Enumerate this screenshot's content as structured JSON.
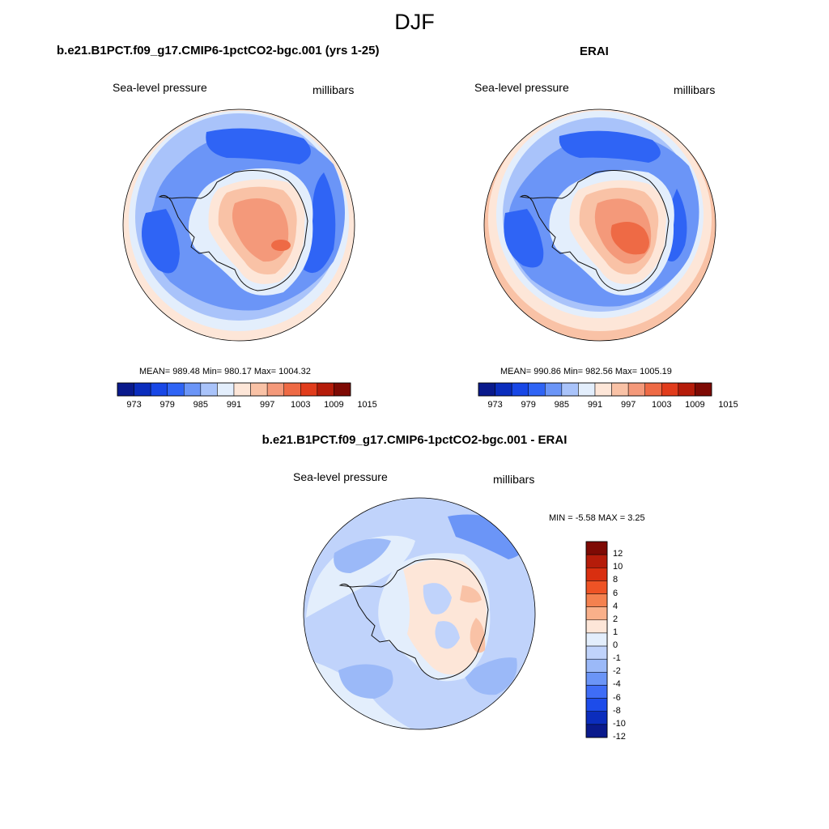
{
  "figure": {
    "title": "DJF",
    "variable_label": "Sea-level pressure",
    "units_label": "millibars"
  },
  "panels": [
    {
      "title": "b.e21.B1PCT.f09_g17.CMIP6-1pctCO2-bgc.001 (yrs 1-25)",
      "variable_label": "Sea-level pressure",
      "units_label": "millibars",
      "stats": "MEAN= 989.48  Min= 980.17  Max= 1004.32",
      "colorbar_ticks": [
        "973",
        "979",
        "985",
        "991",
        "997",
        "1003",
        "1009",
        "1015"
      ]
    },
    {
      "title": "ERAI",
      "variable_label": "Sea-level pressure",
      "units_label": "millibars",
      "stats": "MEAN= 990.86  Min= 982.56  Max= 1005.19",
      "colorbar_ticks": [
        "973",
        "979",
        "985",
        "991",
        "997",
        "1003",
        "1009",
        "1015"
      ]
    },
    {
      "title": "b.e21.B1PCT.f09_g17.CMIP6-1pctCO2-bgc.001 - ERAI",
      "variable_label": "Sea-level pressure",
      "units_label": "millibars",
      "stats": "MIN =  -5.58 MAX =   3.25",
      "colorbar_ticks": [
        "12",
        "10",
        "8",
        "6",
        "4",
        "2",
        "1",
        "0",
        "-1",
        "-2",
        "-4",
        "-6",
        "-8",
        "-10",
        "-12"
      ]
    }
  ],
  "colors": {
    "abs_palette": [
      "#0a1a8c",
      "#0b2dbd",
      "#1847e6",
      "#2f64f5",
      "#6b95f7",
      "#a9c3fa",
      "#e3eefc",
      "#fde6d8",
      "#f9c2a6",
      "#f4997a",
      "#ee6a45",
      "#e13c1c",
      "#b51c0a",
      "#7e0a04"
    ],
    "diff_palette": [
      "#7e0a04",
      "#b51c0a",
      "#d92f10",
      "#ee5325",
      "#f4814f",
      "#f9b08a",
      "#fde6d8",
      "#e3eefc",
      "#c0d3fb",
      "#9bb9f8",
      "#6b95f7",
      "#3f6df6",
      "#1d4cea",
      "#0b2dbd",
      "#0a1a8c"
    ]
  }
}
